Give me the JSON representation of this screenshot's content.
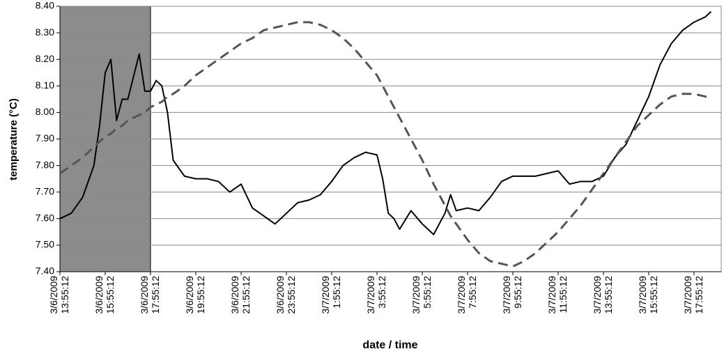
{
  "chart_data": {
    "type": "line",
    "x_label": "date / time",
    "y_label": "temperature (°C)",
    "xlim": [
      "2009-03-06T13:55:12",
      "2009-03-07T19:07:12"
    ],
    "ylim": [
      7.4,
      8.4
    ],
    "yticks": [
      {
        "value": 7.4,
        "label": "7.40"
      },
      {
        "value": 7.5,
        "label": "7.50"
      },
      {
        "value": 7.6,
        "label": "7.60"
      },
      {
        "value": 7.7,
        "label": "7.70"
      },
      {
        "value": 7.8,
        "label": "7.80"
      },
      {
        "value": 7.9,
        "label": "7.90"
      },
      {
        "value": 8.0,
        "label": "8.00"
      },
      {
        "value": 8.1,
        "label": "8.10"
      },
      {
        "value": 8.2,
        "label": "8.20"
      },
      {
        "value": 8.3,
        "label": "8.30"
      },
      {
        "value": 8.4,
        "label": "8.40"
      }
    ],
    "xticks": [
      {
        "value": "2009-03-06T13:55:12",
        "label": "3/6/2009 13:55:12"
      },
      {
        "value": "2009-03-06T15:55:12",
        "label": "3/6/2009 15:55:12"
      },
      {
        "value": "2009-03-06T17:55:12",
        "label": "3/6/2009 17:55:12"
      },
      {
        "value": "2009-03-06T19:55:12",
        "label": "3/6/2009 19:55:12"
      },
      {
        "value": "2009-03-06T21:55:12",
        "label": "3/6/2009 21:55:12"
      },
      {
        "value": "2009-03-06T23:55:12",
        "label": "3/6/2009 23:55:12"
      },
      {
        "value": "2009-03-07T01:55:12",
        "label": "3/7/2009 1:55:12"
      },
      {
        "value": "2009-03-07T03:55:12",
        "label": "3/7/2009 3:55:12"
      },
      {
        "value": "2009-03-07T05:55:12",
        "label": "3/7/2009 5:55:12"
      },
      {
        "value": "2009-03-07T07:55:12",
        "label": "3/7/2009 7:55:12"
      },
      {
        "value": "2009-03-07T09:55:12",
        "label": "3/7/2009 9:55:12"
      },
      {
        "value": "2009-03-07T11:55:12",
        "label": "3/7/2009 11:55:12"
      },
      {
        "value": "2009-03-07T13:55:12",
        "label": "3/7/2009 13:55:12"
      },
      {
        "value": "2009-03-07T15:55:12",
        "label": "3/7/2009 15:55:12"
      },
      {
        "value": "2009-03-07T17:55:12",
        "label": "3/7/2009 17:55:12"
      }
    ],
    "grid": true,
    "shaded_range": [
      "2009-03-06T13:55:12",
      "2009-03-06T17:55:12"
    ],
    "shade_color": "#8c8c8c",
    "x": [
      "2009-03-06T13:55:12",
      "2009-03-06T14:25:12",
      "2009-03-06T14:55:12",
      "2009-03-06T15:25:12",
      "2009-03-06T15:40:12",
      "2009-03-06T15:55:12",
      "2009-03-06T16:10:12",
      "2009-03-06T16:25:12",
      "2009-03-06T16:40:12",
      "2009-03-06T16:55:12",
      "2009-03-06T17:25:12",
      "2009-03-06T17:40:12",
      "2009-03-06T17:55:12",
      "2009-03-06T18:10:12",
      "2009-03-06T18:25:12",
      "2009-03-06T18:40:12",
      "2009-03-06T18:55:12",
      "2009-03-06T19:25:12",
      "2009-03-06T19:55:12",
      "2009-03-06T20:25:12",
      "2009-03-06T20:55:12",
      "2009-03-06T21:25:12",
      "2009-03-06T21:55:12",
      "2009-03-06T22:25:12",
      "2009-03-06T22:55:12",
      "2009-03-06T23:25:12",
      "2009-03-06T23:55:12",
      "2009-03-07T00:25:12",
      "2009-03-07T00:55:12",
      "2009-03-07T01:25:12",
      "2009-03-07T01:55:12",
      "2009-03-07T02:25:12",
      "2009-03-07T02:55:12",
      "2009-03-07T03:25:12",
      "2009-03-07T03:55:12",
      "2009-03-07T04:10:12",
      "2009-03-07T04:25:12",
      "2009-03-07T04:40:12",
      "2009-03-07T04:55:12",
      "2009-03-07T05:25:12",
      "2009-03-07T05:55:12",
      "2009-03-07T06:25:12",
      "2009-03-07T06:55:12",
      "2009-03-07T07:10:12",
      "2009-03-07T07:25:12",
      "2009-03-07T07:55:12",
      "2009-03-07T08:25:12",
      "2009-03-07T08:55:12",
      "2009-03-07T09:25:12",
      "2009-03-07T09:55:12",
      "2009-03-07T10:25:12",
      "2009-03-07T10:55:12",
      "2009-03-07T11:25:12",
      "2009-03-07T11:55:12",
      "2009-03-07T12:25:12",
      "2009-03-07T12:55:12",
      "2009-03-07T13:25:12",
      "2009-03-07T13:55:12",
      "2009-03-07T14:25:12",
      "2009-03-07T14:55:12",
      "2009-03-07T15:25:12",
      "2009-03-07T15:55:12",
      "2009-03-07T16:25:12",
      "2009-03-07T16:55:12",
      "2009-03-07T17:25:12",
      "2009-03-07T17:55:12",
      "2009-03-07T18:25:12",
      "2009-03-07T18:40:12"
    ],
    "series": [
      {
        "color": "#000000",
        "style": "solid",
        "values": [
          7.6,
          7.62,
          7.68,
          7.8,
          7.95,
          8.15,
          8.2,
          7.97,
          8.05,
          8.05,
          8.22,
          8.08,
          8.08,
          8.12,
          8.1,
          8.0,
          7.82,
          7.76,
          7.75,
          7.75,
          7.74,
          7.7,
          7.73,
          7.64,
          7.61,
          7.58,
          7.62,
          7.66,
          7.67,
          7.69,
          7.74,
          7.8,
          7.83,
          7.85,
          7.84,
          7.75,
          7.62,
          7.6,
          7.56,
          7.63,
          7.58,
          7.54,
          7.62,
          7.69,
          7.63,
          7.64,
          7.63,
          7.68,
          7.74,
          7.76,
          7.76,
          7.76,
          7.77,
          7.78,
          7.73,
          7.74,
          7.74,
          7.76,
          7.83,
          7.88,
          7.97,
          8.06,
          8.18,
          8.26,
          8.31,
          8.34,
          8.36,
          8.38
        ]
      },
      {
        "color": "#555555",
        "style": "dashed",
        "values": [
          7.77,
          7.8,
          7.83,
          7.87,
          7.89,
          7.91,
          7.92,
          7.94,
          7.95,
          7.97,
          7.99,
          8.0,
          8.02,
          8.03,
          8.04,
          8.06,
          8.07,
          8.1,
          8.14,
          8.17,
          8.2,
          8.23,
          8.26,
          8.28,
          8.31,
          8.32,
          8.33,
          8.34,
          8.34,
          8.33,
          8.31,
          8.28,
          8.24,
          8.19,
          8.14,
          8.1,
          8.06,
          8.02,
          7.98,
          7.9,
          7.82,
          7.73,
          7.65,
          7.61,
          7.58,
          7.52,
          7.47,
          7.44,
          7.43,
          7.42,
          7.44,
          7.47,
          7.51,
          7.55,
          7.6,
          7.65,
          7.71,
          7.77,
          7.83,
          7.89,
          7.95,
          7.99,
          8.03,
          8.06,
          8.07,
          8.07,
          8.06,
          8.05
        ]
      }
    ]
  }
}
